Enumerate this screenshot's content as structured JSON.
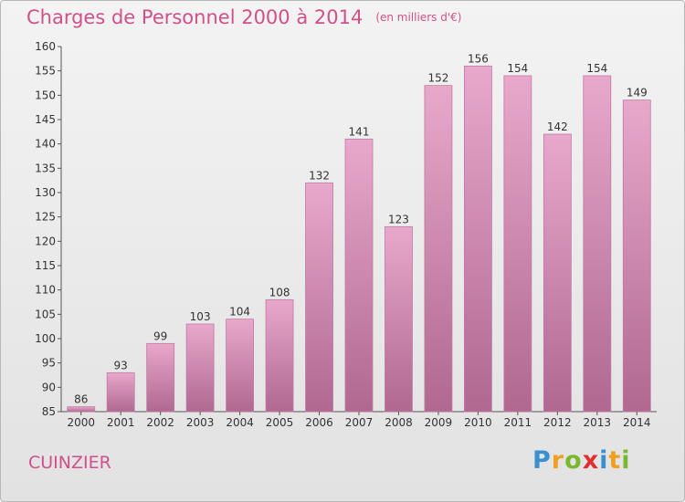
{
  "header": {
    "title": "Charges de Personnel 2000 à 2014",
    "unit_note": "(en milliers d'€)"
  },
  "footer": {
    "commune": "CUINZIER",
    "logo_text": "Proxiti"
  },
  "colors": {
    "accent": "#d0508a",
    "bar_top": "#e8a8cc",
    "bar_bottom": "#b06890"
  },
  "chart_data": {
    "type": "bar",
    "title": "Charges de Personnel 2000 à 2014",
    "subtitle": "(en milliers d'€)",
    "categories": [
      "2000",
      "2001",
      "2002",
      "2003",
      "2004",
      "2005",
      "2006",
      "2007",
      "2008",
      "2009",
      "2010",
      "2011",
      "2012",
      "2013",
      "2014"
    ],
    "values": [
      86,
      93,
      99,
      103,
      104,
      108,
      132,
      141,
      123,
      152,
      156,
      154,
      142,
      154,
      149
    ],
    "ylim": [
      85,
      160
    ],
    "yticks": [
      85,
      90,
      95,
      100,
      105,
      110,
      115,
      120,
      125,
      130,
      135,
      140,
      145,
      150,
      155,
      160
    ],
    "grid": false,
    "legend": "none"
  }
}
